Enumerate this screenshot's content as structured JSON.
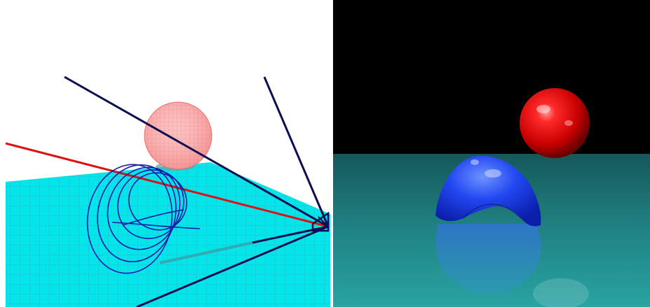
{
  "colors": {
    "left_background": "#ffffff",
    "wireframe_floor": "#00e5e8",
    "wireframe_lines": "#2bb8c6",
    "camera_frustum_lines": "#0d0d52",
    "view_ray": "#dd1111",
    "sphere_wireframe": "#f28b8b",
    "trajectory_curve": "#1a1aa8",
    "right_background": "#000000",
    "rendered_floor": "#1f8c8c",
    "rendered_sphere": "#e00000",
    "rendered_object": "#1f49f5"
  },
  "icons": {
    "left_scene": "wireframe-scene-icon",
    "right_scene": "rendered-scene-icon"
  }
}
